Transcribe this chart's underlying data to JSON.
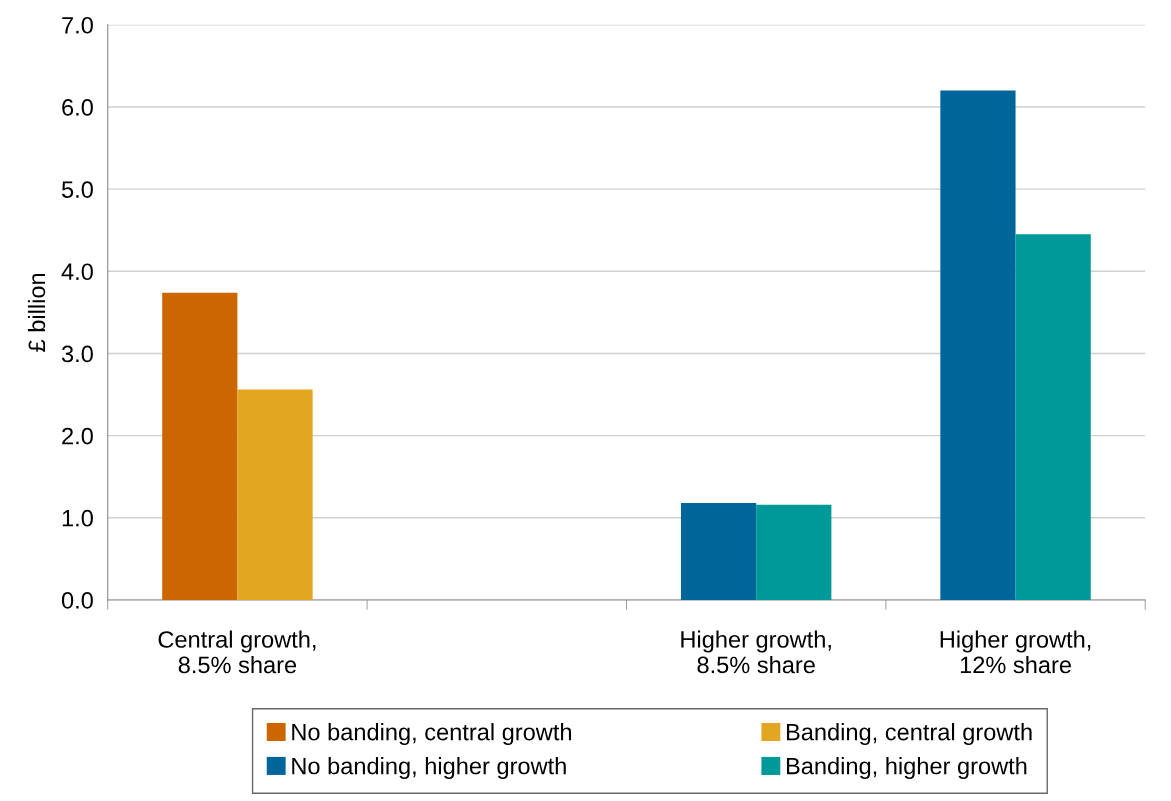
{
  "chart_data": {
    "type": "bar",
    "ylabel": "£ billion",
    "categories": [
      "Central growth,\n8.5% share",
      null,
      "Higher growth,\n8.5% share",
      "Higher growth,\n12% share"
    ],
    "series": [
      {
        "name": "No banding, central growth",
        "color": "#cc6600",
        "values": [
          3.74,
          null,
          null,
          null
        ]
      },
      {
        "name": "Banding, central growth",
        "color": "#e3a621",
        "values": [
          2.56,
          null,
          null,
          null
        ]
      },
      {
        "name": "No banding, higher growth",
        "color": "#006699",
        "values": [
          null,
          null,
          1.18,
          6.2
        ]
      },
      {
        "name": "Banding, higher growth",
        "color": "#009999",
        "values": [
          null,
          null,
          1.16,
          4.45
        ]
      }
    ],
    "ylim": [
      0,
      7
    ],
    "yticks": [
      {
        "value": 0,
        "label": "0.0"
      },
      {
        "value": 1,
        "label": "1.0"
      },
      {
        "value": 2,
        "label": "2.0"
      },
      {
        "value": 3,
        "label": "3.0"
      },
      {
        "value": 4,
        "label": "4.0"
      },
      {
        "value": 5,
        "label": "5.0"
      },
      {
        "value": 6,
        "label": "6.0"
      },
      {
        "value": 7,
        "label": "7.0"
      }
    ],
    "grid": "y",
    "legend": "bottom"
  }
}
